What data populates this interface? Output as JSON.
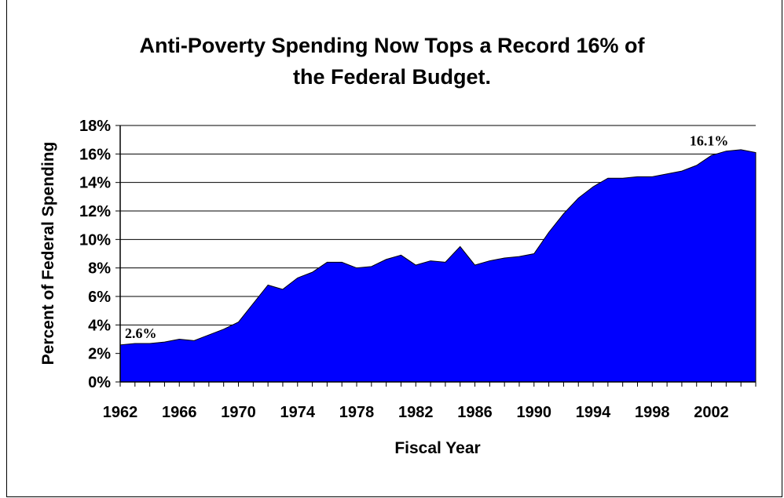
{
  "chart_data": {
    "type": "area",
    "title_lines": [
      "Anti-Poverty Spending Now Tops a Record 16% of",
      "the Federal Budget."
    ],
    "xlabel": "Fiscal Year",
    "ylabel": "Percent of Federal Spending",
    "x": [
      1962,
      1963,
      1964,
      1965,
      1966,
      1967,
      1968,
      1969,
      1970,
      1971,
      1972,
      1973,
      1974,
      1975,
      1976,
      1977,
      1978,
      1979,
      1980,
      1981,
      1982,
      1983,
      1984,
      1985,
      1986,
      1987,
      1988,
      1989,
      1990,
      1991,
      1992,
      1993,
      1994,
      1995,
      1996,
      1997,
      1998,
      1999,
      2000,
      2001,
      2002,
      2003,
      2004,
      2005
    ],
    "values": [
      2.6,
      2.7,
      2.7,
      2.8,
      3.0,
      2.9,
      3.3,
      3.7,
      4.2,
      5.5,
      6.8,
      6.5,
      7.3,
      7.7,
      8.4,
      8.4,
      8.0,
      8.1,
      8.6,
      8.9,
      8.2,
      8.5,
      8.4,
      9.5,
      8.2,
      8.5,
      8.7,
      8.8,
      9.0,
      10.5,
      11.8,
      12.9,
      13.7,
      14.3,
      14.3,
      14.4,
      14.4,
      14.6,
      14.8,
      15.2,
      15.9,
      16.2,
      16.3,
      16.1
    ],
    "xlim": [
      1962,
      2005
    ],
    "ylim": [
      0,
      18
    ],
    "x_ticks": [
      "1962",
      "1966",
      "1970",
      "1974",
      "1978",
      "1982",
      "1986",
      "1990",
      "1994",
      "1998",
      "2002"
    ],
    "y_ticks": [
      "0%",
      "2%",
      "4%",
      "6%",
      "8%",
      "10%",
      "12%",
      "14%",
      "16%",
      "18%"
    ],
    "annotations": [
      {
        "text": "2.6%",
        "x": 1962,
        "y": 2.6
      },
      {
        "text": "16.1%",
        "x": 2000,
        "y": 16.1
      }
    ],
    "fill_color": "#0000ff",
    "grid": "horizontal"
  }
}
